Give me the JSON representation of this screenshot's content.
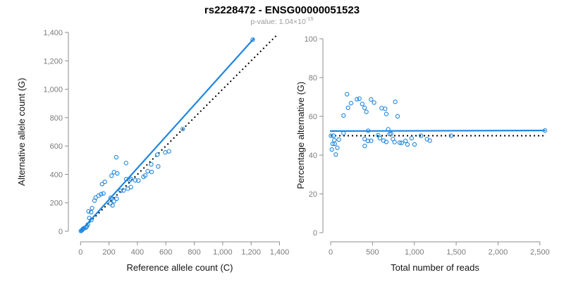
{
  "header": {
    "title": "rs2228472 - ENSG00000051523",
    "subtitle_prefix": "p-value: 1.04×10",
    "subtitle_exponent": "-15"
  },
  "colors": {
    "point_blue": "#1E86E0",
    "fit_line_blue": "#1E86E0",
    "reference_line_black": "#000000",
    "axis_gray": "#8c8c8c",
    "tick_label_gray": "#7c7c7c",
    "subtitle_gray": "#9b9b9b",
    "title_black": "#000000"
  },
  "chart_data": [
    {
      "type": "scatter",
      "panel": "left",
      "xlabel": "Reference allele count (C)",
      "ylabel": "Alternative allele count (G)",
      "xlim": [
        0,
        1400
      ],
      "ylim": [
        0,
        1400
      ],
      "grid": false,
      "legend": false,
      "xticks": {
        "values": [
          0,
          200,
          400,
          600,
          800,
          1000,
          1200,
          1400
        ],
        "labels": [
          "0",
          "200",
          "400",
          "600",
          "800",
          "1,000",
          "1,200",
          "1,400"
        ]
      },
      "yticks": {
        "values": [
          0,
          200,
          400,
          600,
          800,
          1000,
          1200,
          1400
        ],
        "labels": [
          "0",
          "200",
          "400",
          "600",
          "800",
          "1,000",
          "1,200",
          "1,400"
        ]
      },
      "series": [
        {
          "name": "allele counts",
          "marker": "open-circle",
          "x": [
            2,
            8,
            13,
            17,
            23,
            26,
            37,
            45,
            51,
            75,
            61,
            56,
            74,
            81,
            98,
            106,
            127,
            144,
            161,
            151,
            171,
            218,
            235,
            258,
            251,
            320,
            210,
            225,
            235,
            254,
            213,
            282,
            302,
            332,
            354,
            321,
            346,
            354,
            385,
            407,
            442,
            455,
            472,
            500,
            497,
            546,
            540,
            596,
            622,
            719,
            1211
          ],
          "y": [
            2,
            6,
            11,
            17,
            21,
            22,
            25,
            35,
            47,
            79,
            93,
            140,
            134,
            163,
            216,
            237,
            251,
            261,
            266,
            332,
            348,
            391,
            416,
            407,
            521,
            480,
            196,
            182,
            211,
            229,
            236,
            285,
            287,
            300,
            311,
            367,
            359,
            368,
            359,
            357,
            383,
            393,
            423,
            418,
            471,
            456,
            539,
            555,
            563,
            720,
            1349
          ]
        }
      ],
      "fit_line": {
        "style": "solid",
        "color_key": "fit_line_blue",
        "x": [
          0,
          1220
        ],
        "y": [
          0,
          1357
        ]
      },
      "reference_line": {
        "style": "dotted",
        "color_key": "reference_line_black",
        "x": [
          0,
          1380
        ],
        "y": [
          0,
          1380
        ]
      }
    },
    {
      "type": "scatter",
      "panel": "right",
      "xlabel": "Total number of reads",
      "ylabel": "Percentage alternative (G)",
      "xlim": [
        0,
        2600
      ],
      "ylim": [
        0,
        100
      ],
      "grid": false,
      "legend": false,
      "xticks": {
        "values": [
          0,
          500,
          1000,
          1500,
          2000,
          2500
        ],
        "labels": [
          "0",
          "500",
          "1,000",
          "1,500",
          "2,000",
          "2,500"
        ]
      },
      "yticks": {
        "values": [
          0,
          20,
          40,
          60,
          80,
          100
        ],
        "labels": [
          "0",
          "20",
          "40",
          "60",
          "80",
          "100"
        ]
      },
      "series": [
        {
          "name": "percentage alternative",
          "marker": "open-circle",
          "x": [
            4,
            14,
            24,
            34,
            44,
            48,
            62,
            80,
            98,
            154,
            154,
            196,
            208,
            244,
            314,
            343,
            378,
            405,
            427,
            483,
            519,
            609,
            651,
            665,
            772,
            800,
            406,
            407,
            446,
            483,
            449,
            567,
            589,
            632,
            665,
            688,
            705,
            722,
            744,
            764,
            825,
            848,
            895,
            918,
            968,
            1002,
            1079,
            1151,
            1185,
            1439,
            2560
          ],
          "y": [
            50.0,
            42.9,
            45.8,
            50.0,
            47.7,
            45.8,
            40.3,
            43.8,
            48.0,
            51.3,
            60.4,
            71.4,
            64.4,
            66.8,
            68.8,
            69.1,
            66.4,
            64.4,
            62.3,
            68.7,
            67.1,
            64.2,
            63.9,
            61.2,
            67.5,
            60.0,
            48.3,
            44.7,
            47.3,
            47.4,
            52.6,
            50.3,
            48.7,
            47.5,
            46.8,
            53.3,
            50.9,
            51.0,
            48.3,
            46.7,
            46.4,
            46.3,
            47.3,
            45.5,
            48.7,
            45.5,
            50.0,
            48.2,
            47.5,
            50.0,
            52.7
          ]
        }
      ],
      "fit_line": {
        "style": "solid",
        "color_key": "fit_line_blue",
        "x": [
          0,
          2560
        ],
        "y": [
          52.4,
          52.7
        ]
      },
      "reference_line": {
        "style": "dotted",
        "color_key": "reference_line_black",
        "x": [
          0,
          2550
        ],
        "y": [
          50,
          50
        ]
      }
    }
  ]
}
